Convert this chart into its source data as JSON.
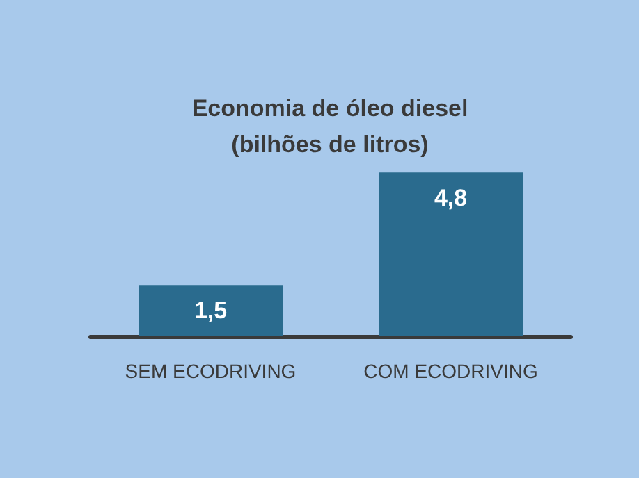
{
  "chart_data": {
    "type": "bar",
    "title": "Economia de óleo diesel\n(bilhões de litros)",
    "categories": [
      "SEM ECODRIVING",
      "COM ECODRIVING"
    ],
    "values": [
      1.5,
      4.8
    ],
    "value_labels": [
      "1,5",
      "4,8"
    ],
    "color": "#2a6b8e"
  }
}
